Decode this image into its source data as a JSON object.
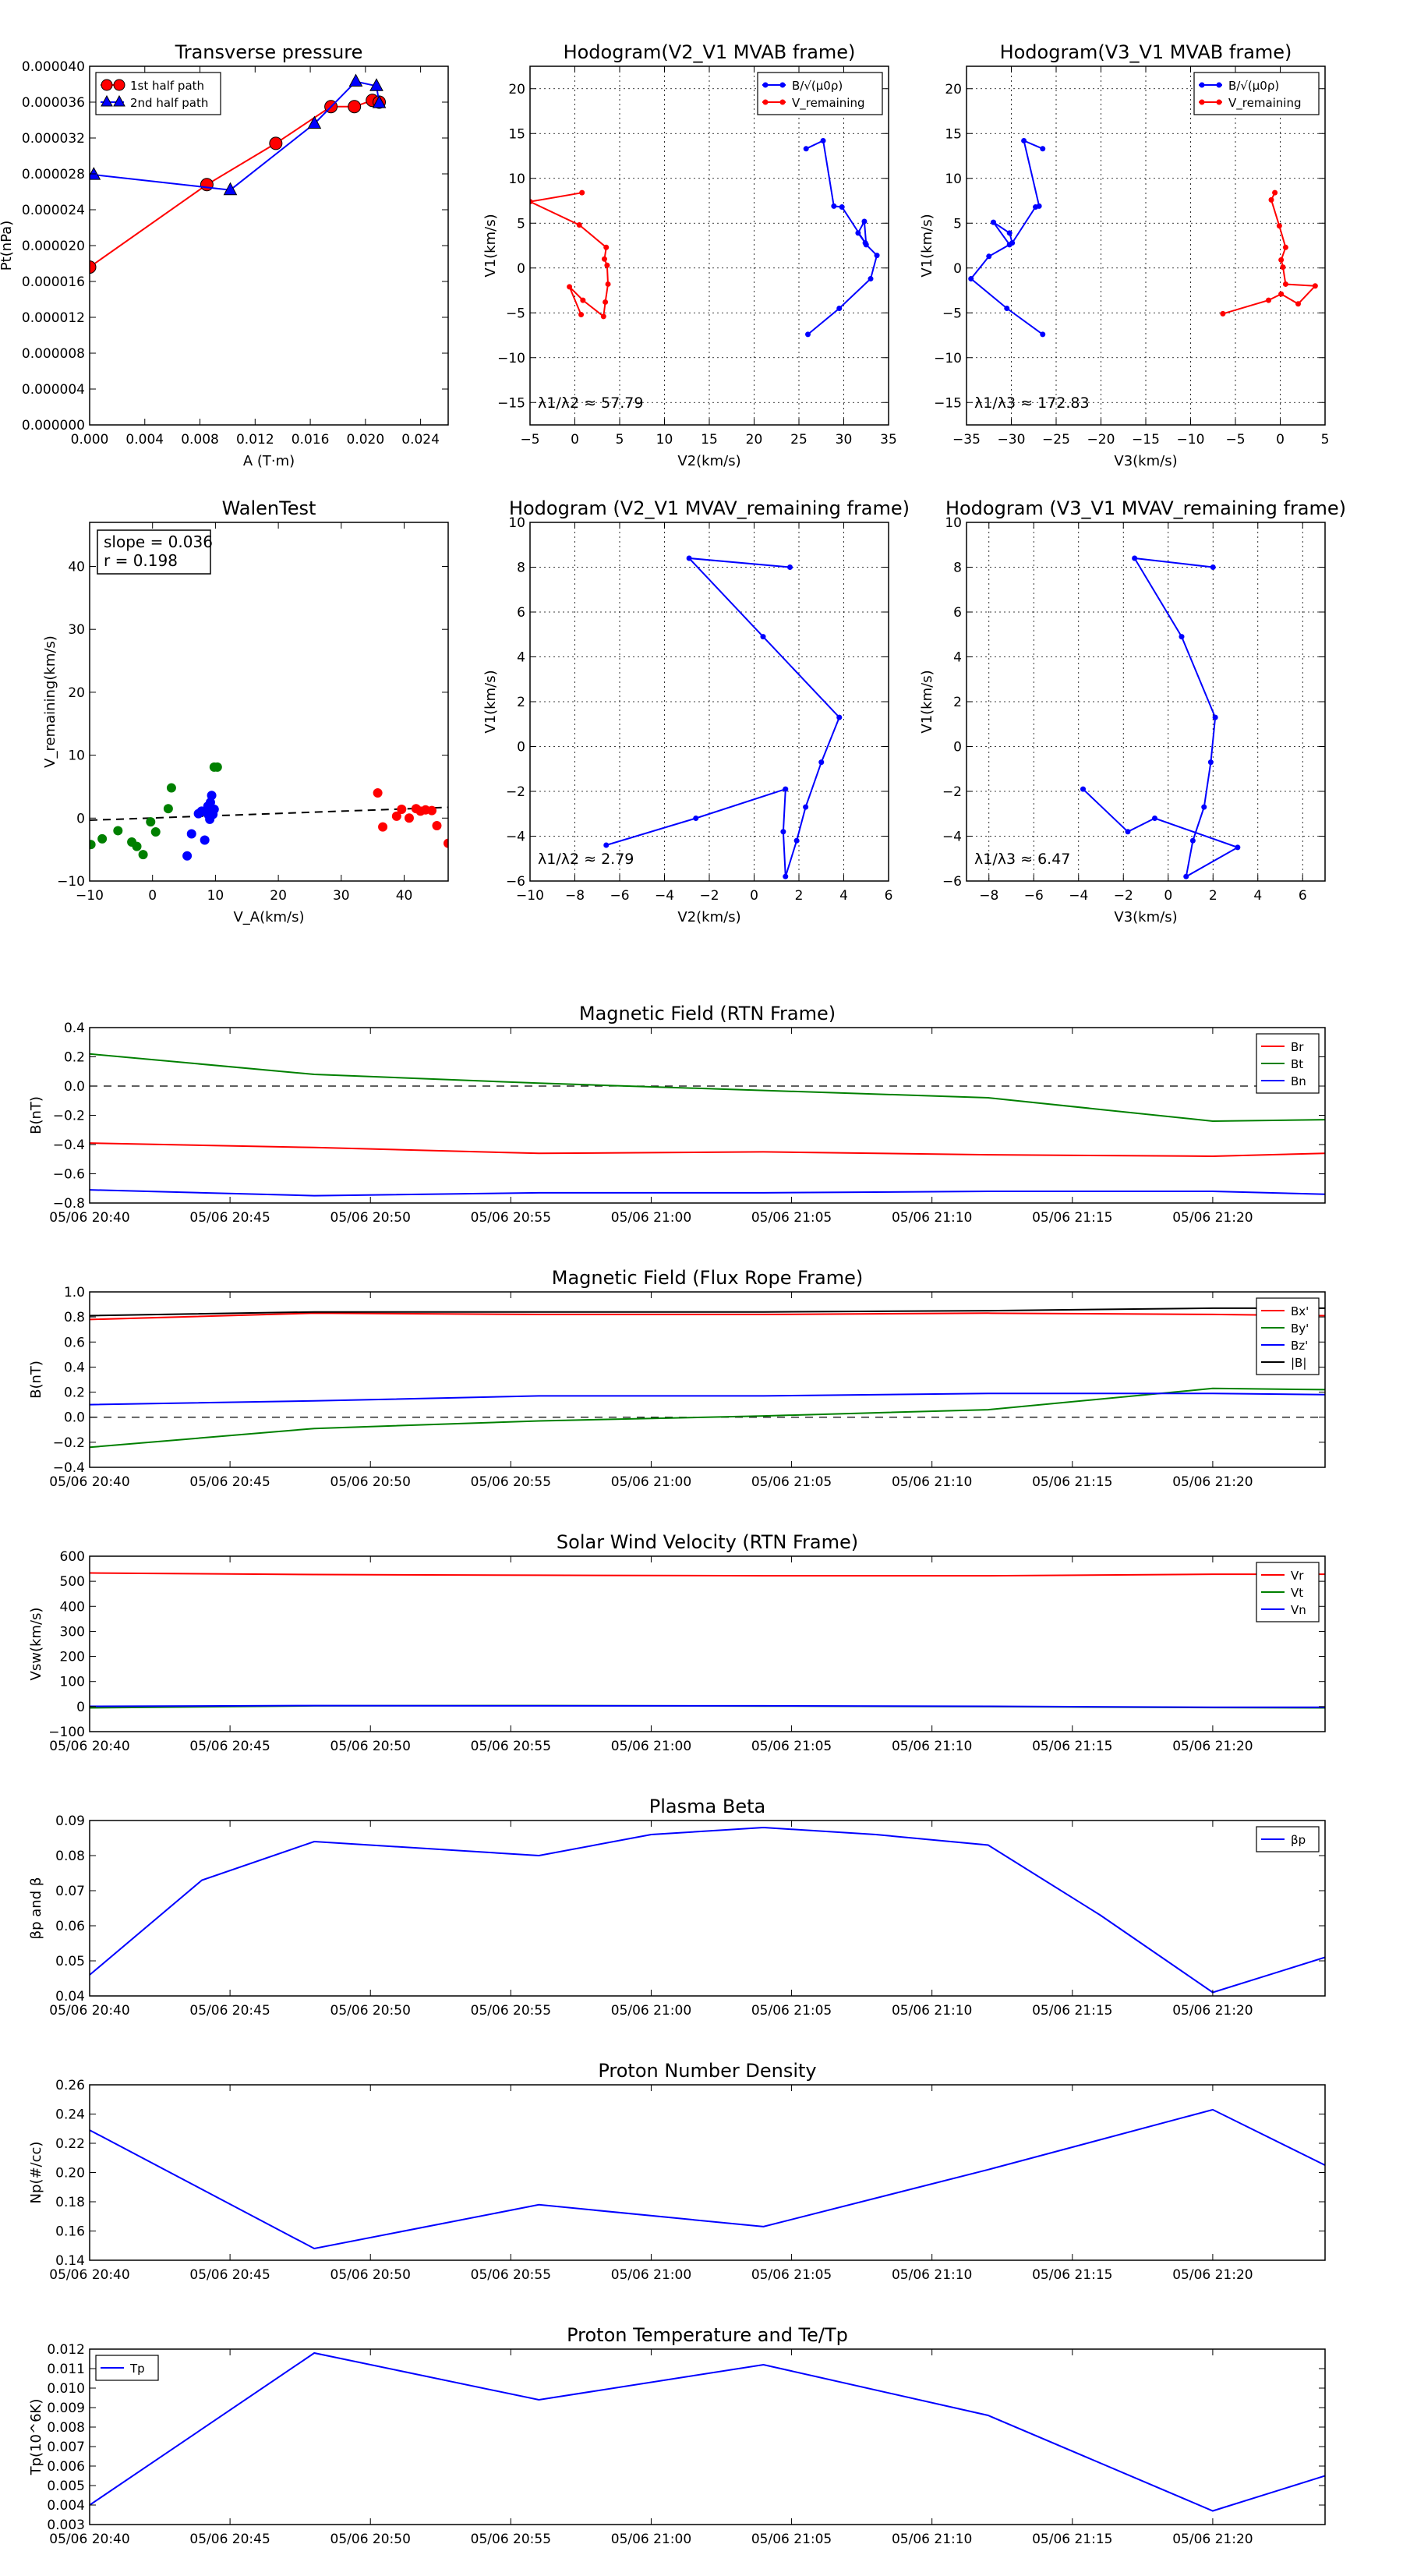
{
  "chart_data": [
    {
      "type": "line",
      "title": "Transverse pressure",
      "xlabel": "A (T·m)",
      "ylabel": "Pt(nPa)",
      "xlim": [
        0,
        0.026
      ],
      "ylim": [
        0,
        4e-05
      ],
      "xticks": [
        0,
        0.004,
        0.008,
        0.012,
        0.016,
        0.02,
        0.024
      ],
      "yticks": [
        0,
        4e-06,
        8e-06,
        1.2e-05,
        1.6e-05,
        2e-05,
        2.4e-05,
        2.8e-05,
        3.2e-05,
        3.6e-05,
        4e-05
      ],
      "xticks_labels": [
        "0.000",
        "0.004",
        "0.008",
        "0.012",
        "0.016",
        "0.020",
        "0.024"
      ],
      "yticks_labels": [
        "0.000000",
        "0.000004",
        "0.000008",
        "0.000012",
        "0.000016",
        "0.000020",
        "0.000024",
        "0.000028",
        "0.000032",
        "0.000036",
        "0.000040"
      ],
      "grid": false,
      "legend": "top-left",
      "series": [
        {
          "name": "1st half path",
          "color": "#ff0000",
          "marker": "circle",
          "x": [
            0.0,
            0.0085,
            0.0135,
            0.0175,
            0.0192,
            0.0205,
            0.021
          ],
          "y": [
            1.76e-05,
            2.68e-05,
            3.14e-05,
            3.55e-05,
            3.55e-05,
            3.62e-05,
            3.6e-05
          ]
        },
        {
          "name": "2nd half path",
          "color": "#0000ff",
          "marker": "triangle",
          "x": [
            0.0003,
            0.0102,
            0.0163,
            0.0193,
            0.0208,
            0.021
          ],
          "y": [
            2.79e-05,
            2.62e-05,
            3.36e-05,
            3.83e-05,
            3.78e-05,
            3.59e-05
          ]
        }
      ]
    },
    {
      "type": "line",
      "title": "Hodogram(V2_V1 MVAB frame)",
      "xlabel": "V2(km/s)",
      "ylabel": "V1(km/s)",
      "xlim": [
        -5,
        35
      ],
      "ylim": [
        -17.5,
        22.5
      ],
      "xticks": [
        -5,
        0,
        5,
        10,
        15,
        20,
        25,
        30,
        35
      ],
      "yticks": [
        -15,
        -10,
        -5,
        0,
        5,
        10,
        15,
        20
      ],
      "grid": true,
      "legend": "top-right",
      "annotation": "λ1/λ2 ≈ 57.79",
      "series": [
        {
          "name": "B/√(μ0ρ)",
          "color": "#0000ff",
          "x": [
            26,
            29.5,
            33,
            33.7,
            32.5,
            32.3,
            31.6,
            32.4,
            29.8,
            28.9,
            27.7,
            25.8
          ],
          "y": [
            -7.4,
            -4.5,
            -1.2,
            1.4,
            2.6,
            5.2,
            3.9,
            2.8,
            6.8,
            6.9,
            14.2,
            13.3
          ]
        },
        {
          "name": "V_remaining",
          "color": "#ff0000",
          "x": [
            0.7,
            -0.6,
            0.9,
            3.2,
            3.4,
            3.7,
            3.6,
            3.3,
            3.5,
            0.5,
            -5,
            0.8
          ],
          "y": [
            -5.2,
            -2.1,
            -3.6,
            -5.4,
            -3.8,
            -1.8,
            0.3,
            1.0,
            2.3,
            4.8,
            7.4,
            8.4
          ]
        }
      ]
    },
    {
      "type": "line",
      "title": "Hodogram(V3_V1 MVAB frame)",
      "xlabel": "V3(km/s)",
      "ylabel": "V1(km/s)",
      "xlim": [
        -35,
        5
      ],
      "ylim": [
        -17.5,
        22.5
      ],
      "xticks": [
        -35,
        -30,
        -25,
        -20,
        -15,
        -10,
        -5,
        0,
        5
      ],
      "yticks": [
        -15,
        -10,
        -5,
        0,
        5,
        10,
        15,
        20
      ],
      "grid": true,
      "legend": "top-right",
      "annotation": "λ1/λ3 ≈ 172.83",
      "series": [
        {
          "name": "B/√(μ0ρ)",
          "color": "#0000ff",
          "x": [
            -26.5,
            -30.5,
            -34.5,
            -32.5,
            -30.2,
            -32,
            -30.2,
            -29.9,
            -27.3,
            -26.9,
            -28.6,
            -26.5
          ],
          "y": [
            -7.4,
            -4.5,
            -1.2,
            1.3,
            2.6,
            5.1,
            3.9,
            2.8,
            6.8,
            6.9,
            14.2,
            13.3
          ]
        },
        {
          "name": "V_remaining",
          "color": "#ff0000",
          "x": [
            -6.4,
            -1.3,
            0.1,
            2.0,
            3.9,
            0.6,
            0.3,
            0.1,
            0.6,
            -0.1,
            -1.0,
            -0.6
          ],
          "y": [
            -5.1,
            -3.6,
            -2.9,
            -4.0,
            -2.0,
            -1.8,
            0.1,
            0.9,
            2.3,
            4.7,
            7.6,
            8.4
          ]
        }
      ]
    },
    {
      "type": "scatter",
      "title": "WalenTest",
      "xlabel": "V_A(km/s)",
      "ylabel": "V_remaining(km/s)",
      "xlim": [
        -10,
        47
      ],
      "ylim": [
        -10,
        47
      ],
      "xticks": [
        -10,
        0,
        10,
        20,
        30,
        40
      ],
      "yticks": [
        -10,
        0,
        10,
        20,
        30,
        40
      ],
      "grid": false,
      "annotation": [
        "slope = 0.036",
        "r = 0.198"
      ],
      "fit_line": {
        "slope": 0.036,
        "intercept": 0.02,
        "style": "dashed"
      },
      "series": [
        {
          "color": "#008000",
          "x": [
            -9.8,
            -8,
            -5.5,
            -3.3,
            -2.5,
            -1.5,
            -0.3,
            0.5,
            2.5,
            3.0,
            9.8,
            10.3
          ],
          "y": [
            -4.2,
            -3.3,
            -2.0,
            -3.8,
            -4.5,
            -5.8,
            -0.6,
            -2.2,
            1.5,
            4.8,
            8.1,
            8.1
          ]
        },
        {
          "color": "#0000ff",
          "x": [
            5.5,
            6.2,
            7.3,
            7.8,
            8.3,
            8.6,
            8.8,
            8.9,
            9.1,
            9.2,
            9.4,
            9.6,
            9.1,
            9.8
          ],
          "y": [
            -6.0,
            -2.5,
            0.7,
            1.1,
            -3.5,
            0.9,
            1.9,
            0.5,
            -0.2,
            2.5,
            3.6,
            0.6,
            2.0,
            1.4
          ]
        },
        {
          "color": "#ff0000",
          "x": [
            35.8,
            36.6,
            38.8,
            39.6,
            40.8,
            41.9,
            42.6,
            43.4,
            44.4,
            45.2,
            47
          ],
          "y": [
            4.0,
            -1.4,
            0.3,
            1.4,
            0.0,
            1.5,
            1.1,
            1.3,
            1.2,
            -1.2,
            -4.0
          ]
        }
      ]
    },
    {
      "type": "line",
      "title": "Hodogram (V2_V1 MVAV_remaining frame)",
      "xlabel": "V2(km/s)",
      "ylabel": "V1(km/s)",
      "xlim": [
        -10,
        6
      ],
      "ylim": [
        -6,
        10
      ],
      "xticks": [
        -10,
        -8,
        -6,
        -4,
        -2,
        0,
        2,
        4,
        6
      ],
      "yticks": [
        -6,
        -4,
        -2,
        0,
        2,
        4,
        6,
        8,
        10
      ],
      "grid": true,
      "annotation": "λ1/λ2 ≈ 2.79",
      "series": [
        {
          "color": "#0000ff",
          "x": [
            1.6,
            -2.9,
            0.4,
            3.8,
            3.0,
            2.3,
            1.9,
            1.4,
            1.3,
            1.4,
            -2.6,
            -6.6
          ],
          "y": [
            8.0,
            8.4,
            4.9,
            1.3,
            -0.7,
            -2.7,
            -4.2,
            -5.8,
            -3.8,
            -1.9,
            -3.2,
            -4.4
          ]
        }
      ]
    },
    {
      "type": "line",
      "title": "Hodogram (V3_V1 MVAV_remaining frame)",
      "xlabel": "V3(km/s)",
      "ylabel": "V1(km/s)",
      "xlim": [
        -9,
        7
      ],
      "ylim": [
        -6,
        10
      ],
      "xticks": [
        -8,
        -6,
        -4,
        -2,
        0,
        2,
        4,
        6
      ],
      "yticks": [
        -6,
        -4,
        -2,
        0,
        2,
        4,
        6,
        8,
        10
      ],
      "grid": true,
      "annotation": "λ1/λ3 ≈ 6.47",
      "series": [
        {
          "color": "#0000ff",
          "x": [
            2.0,
            -1.5,
            0.6,
            2.1,
            1.9,
            1.6,
            1.1,
            0.8,
            3.1,
            -0.6,
            -1.8,
            -3.8
          ],
          "y": [
            8.0,
            8.4,
            4.9,
            1.3,
            -0.7,
            -2.7,
            -4.2,
            -5.8,
            -4.5,
            -3.2,
            -3.8,
            -1.9
          ]
        }
      ]
    },
    {
      "type": "line",
      "title": "Magnetic Field (RTN Frame)",
      "ylabel": "B(nT)",
      "xlim": [
        0,
        44
      ],
      "ylim": [
        -0.8,
        0.4
      ],
      "yticks": [
        -0.8,
        -0.6,
        -0.4,
        -0.2,
        0.0,
        0.2,
        0.4
      ],
      "yticks_labels": [
        "−0.8",
        "−0.6",
        "−0.4",
        "−0.2",
        "0.0",
        "0.2",
        "0.4"
      ],
      "xticks": [
        0,
        5,
        10,
        15,
        20,
        25,
        30,
        35,
        40
      ],
      "xticks_labels": [
        "05/06 20:40",
        "05/06 20:45",
        "05/06 20:50",
        "05/06 20:55",
        "05/06 21:00",
        "05/06 21:05",
        "05/06 21:10",
        "05/06 21:15",
        "05/06 21:20"
      ],
      "zero_line": true,
      "legend": "top-right",
      "x": [
        0,
        8,
        16,
        24,
        32,
        40,
        44
      ],
      "series": [
        {
          "name": "Br",
          "color": "#ff0000",
          "values": [
            -0.39,
            -0.42,
            -0.46,
            -0.45,
            -0.47,
            -0.48,
            -0.46
          ]
        },
        {
          "name": "Bt",
          "color": "#008000",
          "values": [
            0.22,
            0.08,
            0.02,
            -0.03,
            -0.08,
            -0.24,
            -0.23
          ]
        },
        {
          "name": "Bn",
          "color": "#0000ff",
          "values": [
            -0.71,
            -0.75,
            -0.73,
            -0.73,
            -0.72,
            -0.72,
            -0.74
          ]
        }
      ]
    },
    {
      "type": "line",
      "title": "Magnetic Field (Flux Rope Frame)",
      "ylabel": "B(nT)",
      "xlim": [
        0,
        44
      ],
      "ylim": [
        -0.4,
        1.0
      ],
      "yticks": [
        -0.4,
        -0.2,
        0.0,
        0.2,
        0.4,
        0.6,
        0.8,
        1.0
      ],
      "yticks_labels": [
        "−0.4",
        "−0.2",
        "0.0",
        "0.2",
        "0.4",
        "0.6",
        "0.8",
        "1.0"
      ],
      "xticks": [
        0,
        5,
        10,
        15,
        20,
        25,
        30,
        35,
        40
      ],
      "xticks_labels": [
        "05/06 20:40",
        "05/06 20:45",
        "05/06 20:50",
        "05/06 20:55",
        "05/06 21:00",
        "05/06 21:05",
        "05/06 21:10",
        "05/06 21:15",
        "05/06 21:20"
      ],
      "zero_line": true,
      "legend": "top-right",
      "x": [
        0,
        8,
        16,
        24,
        32,
        40,
        44
      ],
      "series": [
        {
          "name": "Bx'",
          "color": "#ff0000",
          "values": [
            0.78,
            0.83,
            0.82,
            0.82,
            0.83,
            0.82,
            0.81
          ]
        },
        {
          "name": "By'",
          "color": "#008000",
          "values": [
            -0.24,
            -0.09,
            -0.03,
            0.01,
            0.06,
            0.23,
            0.22
          ]
        },
        {
          "name": "Bz'",
          "color": "#0000ff",
          "values": [
            0.1,
            0.13,
            0.17,
            0.17,
            0.19,
            0.19,
            0.18
          ]
        },
        {
          "name": "|B|",
          "color": "#000000",
          "values": [
            0.81,
            0.84,
            0.84,
            0.84,
            0.85,
            0.87,
            0.87
          ]
        }
      ]
    },
    {
      "type": "line",
      "title": "Solar Wind Velocity (RTN Frame)",
      "ylabel": "Vsw(km/s)",
      "xlim": [
        0,
        44
      ],
      "ylim": [
        -100,
        600
      ],
      "yticks": [
        -100,
        0,
        100,
        200,
        300,
        400,
        500,
        600
      ],
      "yticks_labels": [
        "−100",
        "0",
        "100",
        "200",
        "300",
        "400",
        "500",
        "600"
      ],
      "xticks": [
        0,
        5,
        10,
        15,
        20,
        25,
        30,
        35,
        40
      ],
      "xticks_labels": [
        "05/06 20:40",
        "05/06 20:45",
        "05/06 20:50",
        "05/06 20:55",
        "05/06 21:00",
        "05/06 21:05",
        "05/06 21:10",
        "05/06 21:15",
        "05/06 21:20"
      ],
      "legend": "top-right",
      "x": [
        0,
        8,
        16,
        24,
        32,
        40,
        44
      ],
      "series": [
        {
          "name": "Vr",
          "color": "#ff0000",
          "values": [
            533,
            527,
            524,
            522,
            522,
            528,
            528
          ]
        },
        {
          "name": "Vt",
          "color": "#008000",
          "values": [
            -5,
            3,
            4,
            2,
            0,
            -4,
            -5
          ]
        },
        {
          "name": "Vn",
          "color": "#0000ff",
          "values": [
            1,
            4,
            3,
            3,
            1,
            -3,
            -3
          ]
        }
      ]
    },
    {
      "type": "line",
      "title": "Plasma Beta",
      "ylabel": "βp and β",
      "xlim": [
        0,
        44
      ],
      "ylim": [
        0.04,
        0.09
      ],
      "yticks": [
        0.04,
        0.05,
        0.06,
        0.07,
        0.08,
        0.09
      ],
      "yticks_labels": [
        "0.04",
        "0.05",
        "0.06",
        "0.07",
        "0.08",
        "0.09"
      ],
      "xticks": [
        0,
        5,
        10,
        15,
        20,
        25,
        30,
        35,
        40
      ],
      "xticks_labels": [
        "05/06 20:40",
        "05/06 20:45",
        "05/06 20:50",
        "05/06 20:55",
        "05/06 21:00",
        "05/06 21:05",
        "05/06 21:10",
        "05/06 21:15",
        "05/06 21:20"
      ],
      "legend": "top-right",
      "x": [
        0,
        4,
        8,
        16,
        20,
        24,
        28,
        32,
        36,
        40,
        44
      ],
      "series": [
        {
          "name": "βp",
          "color": "#0000ff",
          "values": [
            0.046,
            0.073,
            0.084,
            0.08,
            0.086,
            0.088,
            0.086,
            0.083,
            0.063,
            0.041,
            0.051
          ]
        }
      ]
    },
    {
      "type": "line",
      "title": "Proton Number Density",
      "ylabel": "Np(#/cc)",
      "xlim": [
        0,
        44
      ],
      "ylim": [
        0.14,
        0.26
      ],
      "yticks": [
        0.14,
        0.16,
        0.18,
        0.2,
        0.22,
        0.24,
        0.26
      ],
      "yticks_labels": [
        "0.14",
        "0.16",
        "0.18",
        "0.20",
        "0.22",
        "0.24",
        "0.26"
      ],
      "xticks": [
        0,
        5,
        10,
        15,
        20,
        25,
        30,
        35,
        40
      ],
      "xticks_labels": [
        "05/06 20:40",
        "05/06 20:45",
        "05/06 20:50",
        "05/06 20:55",
        "05/06 21:00",
        "05/06 21:05",
        "05/06 21:10",
        "05/06 21:15",
        "05/06 21:20"
      ],
      "x": [
        0,
        8,
        16,
        24,
        32,
        40,
        44
      ],
      "series": [
        {
          "color": "#0000ff",
          "values": [
            0.229,
            0.148,
            0.178,
            0.163,
            0.202,
            0.243,
            0.205
          ]
        }
      ]
    },
    {
      "type": "line",
      "title": "Proton Temperature and Te/Tp",
      "ylabel": "Tp(10^6K)",
      "xlim": [
        0,
        44
      ],
      "ylim": [
        0.003,
        0.012
      ],
      "yticks": [
        0.003,
        0.004,
        0.005,
        0.006,
        0.007,
        0.008,
        0.009,
        0.01,
        0.011,
        0.012
      ],
      "yticks_labels": [
        "0.003",
        "0.004",
        "0.005",
        "0.006",
        "0.007",
        "0.008",
        "0.009",
        "0.010",
        "0.011",
        "0.012"
      ],
      "xticks": [
        0,
        5,
        10,
        15,
        20,
        25,
        30,
        35,
        40
      ],
      "xticks_labels": [
        "05/06 20:40",
        "05/06 20:45",
        "05/06 20:50",
        "05/06 20:55",
        "05/06 21:00",
        "05/06 21:05",
        "05/06 21:10",
        "05/06 21:15",
        "05/06 21:20"
      ],
      "legend": "top-left",
      "x": [
        0,
        8,
        16,
        24,
        32,
        40,
        44
      ],
      "series": [
        {
          "name": "Tp",
          "color": "#0000ff",
          "values": [
            0.004,
            0.0118,
            0.0094,
            0.0112,
            0.0086,
            0.0037,
            0.0055
          ]
        }
      ]
    }
  ]
}
